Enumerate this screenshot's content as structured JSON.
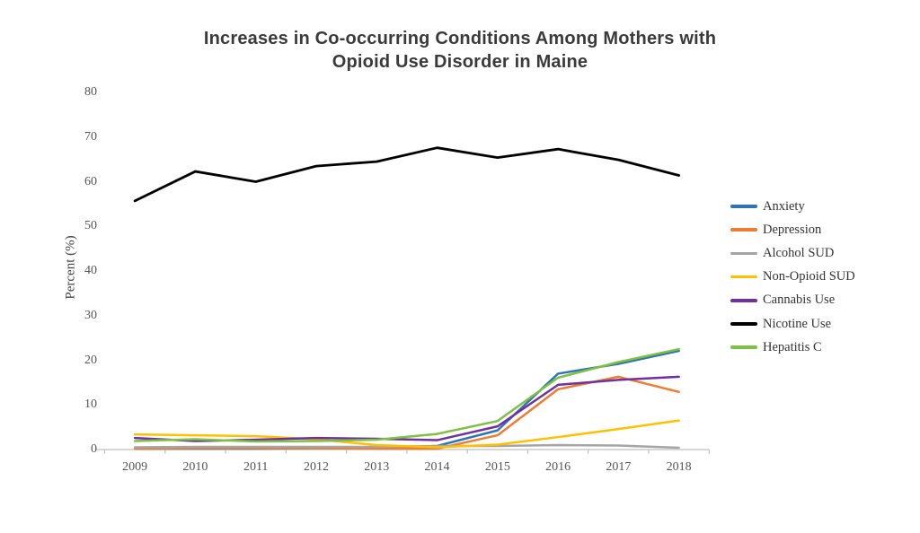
{
  "chart_data": {
    "type": "line",
    "title": "Increases in Co-occurring Conditions Among Mothers with Opioid Use Disorder in Maine",
    "xlabel": "",
    "ylabel": "Percent (%)",
    "categories": [
      "2009",
      "2010",
      "2011",
      "2012",
      "2013",
      "2014",
      "2015",
      "2016",
      "2017",
      "2018"
    ],
    "ylim": [
      0,
      80
    ],
    "yticks": [
      0,
      10,
      20,
      30,
      40,
      50,
      60,
      70,
      80
    ],
    "grid": false,
    "legend_position": "right",
    "axis_color": "#bfbfbf",
    "series": [
      {
        "name": "Anxiety",
        "color": "#2e75b6",
        "values": [
          0.2,
          0.2,
          0.2,
          0.3,
          0.3,
          0.8,
          4.3,
          17.0,
          19.2,
          22.1
        ]
      },
      {
        "name": "Depression",
        "color": "#ed7d31",
        "values": [
          0.2,
          0.3,
          0.3,
          0.3,
          0.2,
          0.2,
          3.2,
          13.5,
          16.3,
          12.9
        ]
      },
      {
        "name": "Alcohol SUD",
        "color": "#a5a5a5",
        "values": [
          0.5,
          0.6,
          0.6,
          0.6,
          0.6,
          0.8,
          0.8,
          1.0,
          0.9,
          0.4
        ]
      },
      {
        "name": "Non-Opioid SUD",
        "color": "#ffc000",
        "values": [
          3.4,
          3.2,
          3.0,
          2.3,
          1.0,
          0.5,
          1.1,
          2.8,
          4.6,
          6.5
        ]
      },
      {
        "name": "Cannabis Use",
        "color": "#7030a0",
        "values": [
          2.6,
          1.9,
          2.2,
          2.6,
          2.4,
          2.1,
          5.2,
          14.5,
          15.6,
          16.3
        ]
      },
      {
        "name": "Nicotine Use",
        "color": "#000000",
        "values": [
          55.7,
          62.3,
          60.0,
          63.5,
          64.5,
          67.6,
          65.4,
          67.3,
          64.9,
          61.4
        ]
      },
      {
        "name": "Hepatitis C",
        "color": "#7dc142",
        "values": [
          1.9,
          2.3,
          1.8,
          1.9,
          2.2,
          3.5,
          6.4,
          16.1,
          19.6,
          22.5
        ]
      }
    ]
  }
}
